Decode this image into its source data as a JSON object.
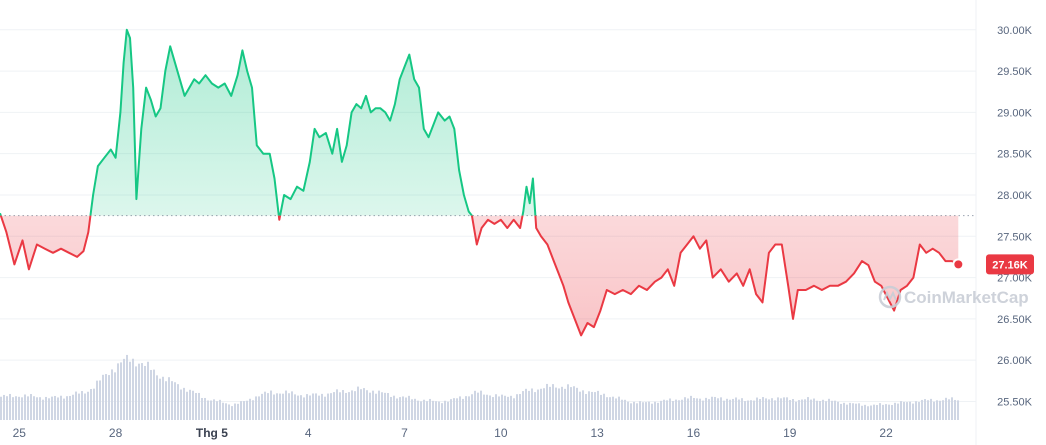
{
  "chart_data": {
    "type": "line",
    "baseline": 27750,
    "ylim": [
      25300,
      30300
    ],
    "y_ticks": [
      {
        "value": 30000,
        "label": "30.00K"
      },
      {
        "value": 29500,
        "label": "29.50K"
      },
      {
        "value": 29000,
        "label": "29.00K"
      },
      {
        "value": 28500,
        "label": "28.50K"
      },
      {
        "value": 28000,
        "label": "28.00K"
      },
      {
        "value": 27500,
        "label": "27.50K"
      },
      {
        "value": 27000,
        "label": "27.00K"
      },
      {
        "value": 26500,
        "label": "26.50K"
      },
      {
        "value": 26000,
        "label": "26.00K"
      },
      {
        "value": 25500,
        "label": "25.50K"
      }
    ],
    "x_ticks": [
      {
        "day": 25,
        "label": "25",
        "bold": false
      },
      {
        "day": 28,
        "label": "28",
        "bold": false
      },
      {
        "day": 31,
        "label": "Thg 5",
        "bold": true
      },
      {
        "day": 34,
        "label": "4",
        "bold": false
      },
      {
        "day": 37,
        "label": "7",
        "bold": false
      },
      {
        "day": 40,
        "label": "10",
        "bold": false
      },
      {
        "day": 43,
        "label": "13",
        "bold": false
      },
      {
        "day": 46,
        "label": "16",
        "bold": false
      },
      {
        "day": 49,
        "label": "19",
        "bold": false
      },
      {
        "day": 52,
        "label": "22",
        "bold": false
      }
    ],
    "xlim": [
      24.4,
      54.8
    ],
    "current_price": {
      "value": 27160,
      "label": "27.16K"
    },
    "colors": {
      "up": "#16c784",
      "down": "#ea3943",
      "volume": "#cfd6e4",
      "grid": "#eff2f5"
    },
    "price_points": [
      [
        24.4,
        27780
      ],
      [
        24.6,
        27550
      ],
      [
        24.85,
        27160
      ],
      [
        25.1,
        27450
      ],
      [
        25.3,
        27100
      ],
      [
        25.55,
        27400
      ],
      [
        25.8,
        27350
      ],
      [
        26.05,
        27300
      ],
      [
        26.3,
        27350
      ],
      [
        26.55,
        27300
      ],
      [
        26.8,
        27250
      ],
      [
        27.0,
        27320
      ],
      [
        27.15,
        27550
      ],
      [
        27.3,
        28000
      ],
      [
        27.45,
        28350
      ],
      [
        27.65,
        28450
      ],
      [
        27.85,
        28550
      ],
      [
        28.0,
        28450
      ],
      [
        28.15,
        29000
      ],
      [
        28.25,
        29600
      ],
      [
        28.35,
        30000
      ],
      [
        28.45,
        29900
      ],
      [
        28.55,
        29300
      ],
      [
        28.65,
        27950
      ],
      [
        28.8,
        28800
      ],
      [
        28.95,
        29300
      ],
      [
        29.1,
        29150
      ],
      [
        29.25,
        28950
      ],
      [
        29.4,
        29050
      ],
      [
        29.55,
        29500
      ],
      [
        29.7,
        29800
      ],
      [
        29.85,
        29600
      ],
      [
        30.0,
        29400
      ],
      [
        30.15,
        29200
      ],
      [
        30.3,
        29300
      ],
      [
        30.45,
        29400
      ],
      [
        30.6,
        29350
      ],
      [
        30.8,
        29450
      ],
      [
        31.0,
        29350
      ],
      [
        31.2,
        29300
      ],
      [
        31.4,
        29350
      ],
      [
        31.6,
        29200
      ],
      [
        31.8,
        29450
      ],
      [
        31.95,
        29750
      ],
      [
        32.1,
        29500
      ],
      [
        32.25,
        29300
      ],
      [
        32.4,
        28600
      ],
      [
        32.6,
        28500
      ],
      [
        32.8,
        28500
      ],
      [
        32.95,
        28200
      ],
      [
        33.1,
        27700
      ],
      [
        33.25,
        28000
      ],
      [
        33.45,
        27950
      ],
      [
        33.65,
        28100
      ],
      [
        33.85,
        28050
      ],
      [
        34.05,
        28400
      ],
      [
        34.2,
        28800
      ],
      [
        34.35,
        28700
      ],
      [
        34.55,
        28750
      ],
      [
        34.75,
        28500
      ],
      [
        34.9,
        28800
      ],
      [
        35.05,
        28400
      ],
      [
        35.2,
        28600
      ],
      [
        35.35,
        29000
      ],
      [
        35.5,
        29100
      ],
      [
        35.65,
        29050
      ],
      [
        35.8,
        29200
      ],
      [
        35.95,
        29000
      ],
      [
        36.1,
        29050
      ],
      [
        36.25,
        29050
      ],
      [
        36.4,
        29000
      ],
      [
        36.55,
        28900
      ],
      [
        36.7,
        29100
      ],
      [
        36.85,
        29400
      ],
      [
        37.0,
        29550
      ],
      [
        37.15,
        29700
      ],
      [
        37.3,
        29400
      ],
      [
        37.45,
        29300
      ],
      [
        37.6,
        28800
      ],
      [
        37.75,
        28700
      ],
      [
        37.9,
        28850
      ],
      [
        38.05,
        29000
      ],
      [
        38.25,
        28900
      ],
      [
        38.4,
        28950
      ],
      [
        38.55,
        28800
      ],
      [
        38.7,
        28300
      ],
      [
        38.85,
        28000
      ],
      [
        39.0,
        27800
      ],
      [
        39.1,
        27750
      ],
      [
        39.25,
        27400
      ],
      [
        39.4,
        27600
      ],
      [
        39.6,
        27700
      ],
      [
        39.8,
        27650
      ],
      [
        40.0,
        27700
      ],
      [
        40.2,
        27600
      ],
      [
        40.4,
        27700
      ],
      [
        40.6,
        27600
      ],
      [
        40.7,
        27800
      ],
      [
        40.8,
        28100
      ],
      [
        40.9,
        27900
      ],
      [
        41.0,
        28200
      ],
      [
        41.1,
        27600
      ],
      [
        41.25,
        27500
      ],
      [
        41.45,
        27400
      ],
      [
        41.65,
        27200
      ],
      [
        41.8,
        27050
      ],
      [
        41.95,
        26900
      ],
      [
        42.1,
        26700
      ],
      [
        42.3,
        26500
      ],
      [
        42.5,
        26300
      ],
      [
        42.7,
        26450
      ],
      [
        42.9,
        26400
      ],
      [
        43.1,
        26600
      ],
      [
        43.3,
        26850
      ],
      [
        43.55,
        26800
      ],
      [
        43.8,
        26850
      ],
      [
        44.05,
        26800
      ],
      [
        44.3,
        26900
      ],
      [
        44.55,
        26850
      ],
      [
        44.8,
        26950
      ],
      [
        45.0,
        27000
      ],
      [
        45.2,
        27100
      ],
      [
        45.4,
        26900
      ],
      [
        45.6,
        27300
      ],
      [
        45.8,
        27400
      ],
      [
        46.0,
        27500
      ],
      [
        46.2,
        27350
      ],
      [
        46.4,
        27450
      ],
      [
        46.6,
        27000
      ],
      [
        46.85,
        27100
      ],
      [
        47.1,
        26950
      ],
      [
        47.35,
        27050
      ],
      [
        47.55,
        26900
      ],
      [
        47.75,
        27100
      ],
      [
        47.95,
        26800
      ],
      [
        48.15,
        26700
      ],
      [
        48.35,
        27300
      ],
      [
        48.55,
        27400
      ],
      [
        48.75,
        27400
      ],
      [
        48.95,
        26900
      ],
      [
        49.1,
        26500
      ],
      [
        49.25,
        26850
      ],
      [
        49.5,
        26850
      ],
      [
        49.75,
        26900
      ],
      [
        50.0,
        26850
      ],
      [
        50.25,
        26900
      ],
      [
        50.5,
        26900
      ],
      [
        50.75,
        26950
      ],
      [
        51.0,
        27050
      ],
      [
        51.25,
        27200
      ],
      [
        51.45,
        27150
      ],
      [
        51.65,
        26950
      ],
      [
        51.85,
        26900
      ],
      [
        52.05,
        26750
      ],
      [
        52.25,
        26600
      ],
      [
        52.45,
        26850
      ],
      [
        52.65,
        26900
      ],
      [
        52.85,
        27000
      ],
      [
        53.05,
        27400
      ],
      [
        53.25,
        27300
      ],
      [
        53.45,
        27350
      ],
      [
        53.65,
        27300
      ],
      [
        53.85,
        27200
      ],
      [
        54.05,
        27200
      ],
      [
        54.25,
        27160
      ]
    ],
    "volume_points": [
      [
        24.4,
        0.38
      ],
      [
        25.0,
        0.4
      ],
      [
        25.5,
        0.38
      ],
      [
        26.0,
        0.36
      ],
      [
        26.5,
        0.4
      ],
      [
        27.0,
        0.45
      ],
      [
        27.3,
        0.55
      ],
      [
        27.6,
        0.7
      ],
      [
        27.9,
        0.85
      ],
      [
        28.2,
        0.95
      ],
      [
        28.4,
        1.0
      ],
      [
        28.7,
        0.95
      ],
      [
        29.0,
        0.85
      ],
      [
        29.3,
        0.75
      ],
      [
        29.6,
        0.65
      ],
      [
        30.0,
        0.55
      ],
      [
        30.4,
        0.45
      ],
      [
        30.8,
        0.35
      ],
      [
        31.2,
        0.3
      ],
      [
        31.6,
        0.25
      ],
      [
        32.0,
        0.3
      ],
      [
        32.4,
        0.4
      ],
      [
        32.8,
        0.45
      ],
      [
        33.2,
        0.45
      ],
      [
        33.6,
        0.42
      ],
      [
        34.0,
        0.4
      ],
      [
        34.4,
        0.42
      ],
      [
        34.8,
        0.45
      ],
      [
        35.2,
        0.48
      ],
      [
        35.6,
        0.5
      ],
      [
        36.0,
        0.48
      ],
      [
        36.4,
        0.42
      ],
      [
        36.8,
        0.38
      ],
      [
        37.2,
        0.35
      ],
      [
        37.6,
        0.32
      ],
      [
        38.0,
        0.3
      ],
      [
        38.4,
        0.32
      ],
      [
        38.8,
        0.38
      ],
      [
        39.2,
        0.45
      ],
      [
        39.6,
        0.42
      ],
      [
        40.0,
        0.38
      ],
      [
        40.4,
        0.4
      ],
      [
        40.8,
        0.48
      ],
      [
        41.2,
        0.52
      ],
      [
        41.6,
        0.55
      ],
      [
        42.0,
        0.55
      ],
      [
        42.4,
        0.5
      ],
      [
        42.8,
        0.45
      ],
      [
        43.2,
        0.42
      ],
      [
        43.6,
        0.35
      ],
      [
        44.0,
        0.3
      ],
      [
        44.4,
        0.28
      ],
      [
        44.8,
        0.3
      ],
      [
        45.2,
        0.32
      ],
      [
        45.6,
        0.35
      ],
      [
        46.0,
        0.36
      ],
      [
        46.4,
        0.35
      ],
      [
        46.8,
        0.36
      ],
      [
        47.2,
        0.34
      ],
      [
        47.6,
        0.33
      ],
      [
        48.0,
        0.34
      ],
      [
        48.4,
        0.36
      ],
      [
        48.8,
        0.35
      ],
      [
        49.2,
        0.33
      ],
      [
        49.6,
        0.34
      ],
      [
        50.0,
        0.33
      ],
      [
        50.4,
        0.3
      ],
      [
        50.8,
        0.27
      ],
      [
        51.2,
        0.25
      ],
      [
        51.6,
        0.24
      ],
      [
        52.0,
        0.26
      ],
      [
        52.4,
        0.28
      ],
      [
        52.8,
        0.3
      ],
      [
        53.2,
        0.32
      ],
      [
        53.6,
        0.33
      ],
      [
        54.0,
        0.34
      ],
      [
        54.3,
        0.33
      ]
    ]
  },
  "watermark": {
    "text": "CoinMarketCap"
  }
}
